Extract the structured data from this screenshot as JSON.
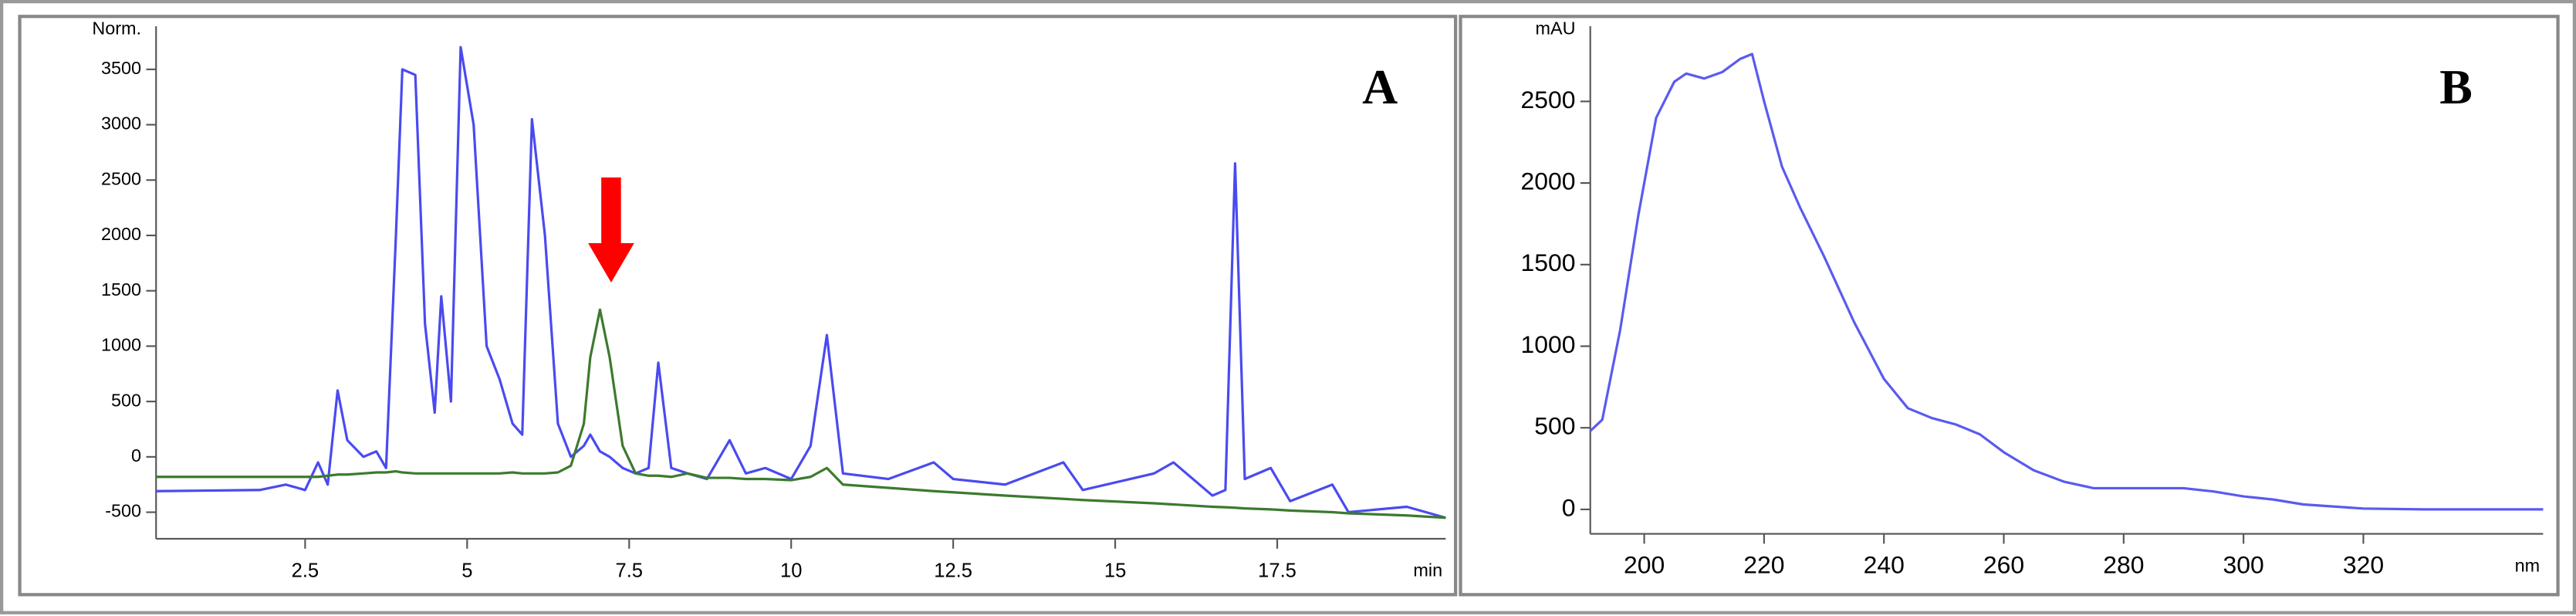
{
  "chart_data": [
    {
      "type": "line",
      "annotation": "A",
      "x_label": "min",
      "y_label": "Norm.",
      "xlim": [
        0.2,
        20.1
      ],
      "xticks": [
        2.5,
        5,
        7.5,
        10,
        12.5,
        15,
        17.5
      ],
      "ylim": [
        -740,
        3800
      ],
      "yticks": [
        -500,
        0,
        500,
        1000,
        1500,
        2000,
        2500,
        3000,
        3500
      ],
      "x": [
        0.2,
        1.8,
        2.2,
        2.5,
        2.7,
        2.85,
        3.0,
        3.15,
        3.4,
        3.6,
        3.75,
        3.9,
        4.0,
        4.2,
        4.35,
        4.5,
        4.6,
        4.75,
        4.9,
        5.1,
        5.3,
        5.5,
        5.7,
        5.85,
        6.0,
        6.2,
        6.4,
        6.6,
        6.8,
        6.9,
        7.05,
        7.2,
        7.4,
        7.6,
        7.8,
        7.95,
        8.15,
        8.4,
        8.7,
        9.05,
        9.3,
        9.6,
        10.0,
        10.3,
        10.55,
        10.8,
        11.5,
        12.2,
        12.5,
        13.3,
        14.2,
        14.5,
        15.6,
        15.9,
        16.5,
        16.7,
        16.85,
        17.0,
        17.4,
        17.7,
        18.35,
        18.6,
        19.5,
        20.1
      ],
      "series": [
        {
          "color": "#4a4af0",
          "values": [
            -310,
            -300,
            -250,
            -300,
            -50,
            -250,
            600,
            150,
            0,
            50,
            -100,
            2000,
            3500,
            3450,
            1200,
            400,
            1450,
            500,
            3700,
            3000,
            1000,
            700,
            300,
            200,
            3050,
            2000,
            300,
            0,
            100,
            200,
            50,
            0,
            -100,
            -150,
            -100,
            850,
            -100,
            -150,
            -200,
            150,
            -150,
            -100,
            -200,
            100,
            1100,
            -150,
            -200,
            -50,
            -200,
            -250,
            -50,
            -300,
            -150,
            -50,
            -350,
            -300,
            2650,
            -200,
            -100,
            -400,
            -250,
            -500,
            -450,
            -550
          ]
        },
        {
          "color": "#3c7a2f",
          "values": [
            -180,
            -180,
            -180,
            -180,
            -180,
            -170,
            -160,
            -160,
            -150,
            -140,
            -140,
            -130,
            -140,
            -150,
            -150,
            -150,
            -150,
            -150,
            -150,
            -150,
            -150,
            -150,
            -140,
            -150,
            -150,
            -150,
            -140,
            -80,
            300,
            900,
            1330,
            900,
            100,
            -150,
            -170,
            -170,
            -180,
            -150,
            -190,
            -190,
            -200,
            -200,
            -210,
            -180,
            -100,
            -250,
            -280,
            -310,
            -320,
            -350,
            -380,
            -390,
            -420,
            -430,
            -450,
            -455,
            -460,
            -465,
            -475,
            -485,
            -500,
            -510,
            -530,
            -550
          ]
        }
      ]
    },
    {
      "type": "line",
      "annotation": "B",
      "x_label": "nm",
      "y_label": "mAU",
      "xlim": [
        191,
        350
      ],
      "xticks": [
        200,
        220,
        240,
        260,
        280,
        300,
        320
      ],
      "ylim": [
        -150,
        2900
      ],
      "yticks": [
        0,
        500,
        1000,
        1500,
        2000,
        2500
      ],
      "x": [
        191,
        193,
        196,
        199,
        202,
        205,
        207,
        210,
        213,
        216,
        218,
        220,
        223,
        226,
        230,
        235,
        240,
        244,
        248,
        252,
        256,
        260,
        265,
        270,
        275,
        280,
        290,
        295,
        300,
        305,
        310,
        320,
        330,
        350
      ],
      "series": [
        {
          "color": "#5a5af0",
          "values": [
            480,
            550,
            1100,
            1800,
            2400,
            2620,
            2670,
            2640,
            2680,
            2760,
            2790,
            2500,
            2100,
            1850,
            1550,
            1150,
            800,
            620,
            560,
            520,
            460,
            350,
            240,
            170,
            130,
            130,
            130,
            110,
            80,
            60,
            30,
            5,
            0,
            0
          ]
        }
      ]
    }
  ]
}
